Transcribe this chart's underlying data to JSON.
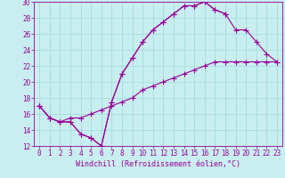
{
  "title": "",
  "xlabel": "Windchill (Refroidissement éolien,°C)",
  "xlim": [
    -0.5,
    23.5
  ],
  "ylim": [
    12,
    30
  ],
  "xticks": [
    0,
    1,
    2,
    3,
    4,
    5,
    6,
    7,
    8,
    9,
    10,
    11,
    12,
    13,
    14,
    15,
    16,
    17,
    18,
    19,
    20,
    21,
    22,
    23
  ],
  "yticks": [
    12,
    14,
    16,
    18,
    20,
    22,
    24,
    26,
    28,
    30
  ],
  "bg_color": "#c8eef0",
  "line_color": "#990099",
  "line_width": 0.8,
  "marker": "+",
  "marker_size": 4,
  "series": [
    [
      17.0,
      15.5,
      15.0,
      15.0,
      13.5,
      13.0,
      12.0,
      17.5,
      21.0,
      23.0,
      25.0,
      26.5,
      27.5,
      28.5,
      29.5,
      29.5,
      30.0,
      29.0,
      28.5
    ],
    [
      17.0,
      15.5,
      15.0,
      15.0,
      13.5,
      13.0,
      12.0,
      17.5,
      21.0,
      23.0,
      25.0,
      26.5,
      27.5,
      28.5,
      29.5,
      29.5,
      30.0,
      29.0,
      28.5,
      26.5,
      26.5,
      25.0,
      23.5,
      22.5
    ],
    [
      17.0,
      15.5,
      15.0,
      15.5,
      15.5,
      16.0,
      16.5,
      17.0,
      17.5,
      18.0,
      19.0,
      19.5,
      20.0,
      20.5,
      21.0,
      21.5,
      22.0,
      22.5,
      22.5,
      22.5,
      22.5,
      22.5,
      22.5,
      22.5
    ]
  ],
  "series_x": [
    [
      0,
      1,
      2,
      3,
      4,
      5,
      6,
      7,
      8,
      9,
      10,
      11,
      12,
      13,
      14,
      15,
      16,
      17,
      18
    ],
    [
      0,
      1,
      2,
      3,
      4,
      5,
      6,
      7,
      8,
      9,
      10,
      11,
      12,
      13,
      14,
      15,
      16,
      17,
      18,
      19,
      20,
      21,
      22,
      23
    ],
    [
      0,
      1,
      2,
      3,
      4,
      5,
      6,
      7,
      8,
      9,
      10,
      11,
      12,
      13,
      14,
      15,
      16,
      17,
      18,
      19,
      20,
      21,
      22,
      23
    ]
  ],
  "grid_color": "#a0d8d8",
  "tick_fontsize": 5.5,
  "xlabel_fontsize": 6.0
}
